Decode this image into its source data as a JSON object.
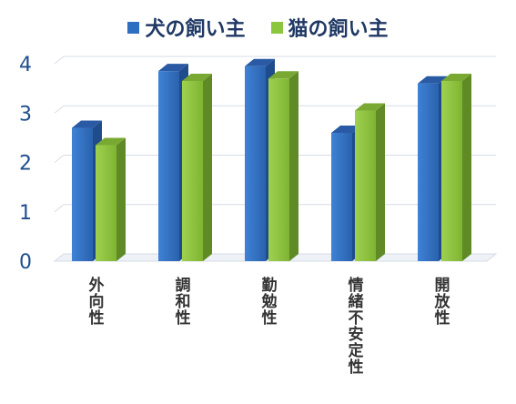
{
  "chart_data": {
    "type": "bar",
    "categories": [
      "外向性",
      "調和性",
      "勤勉性",
      "情緒不安定性",
      "開放性"
    ],
    "series": [
      {
        "name": "犬の飼い主",
        "values": [
          2.7,
          3.85,
          3.95,
          2.6,
          3.6
        ],
        "color": "#2e6fc2"
      },
      {
        "name": "猫の飼い主",
        "values": [
          2.35,
          3.65,
          3.7,
          3.05,
          3.65
        ],
        "color": "#8cc63f"
      }
    ],
    "ylim": [
      0,
      4
    ],
    "yticks": [
      0,
      1,
      2,
      3,
      4
    ],
    "grid": true,
    "legend_position": "top"
  }
}
